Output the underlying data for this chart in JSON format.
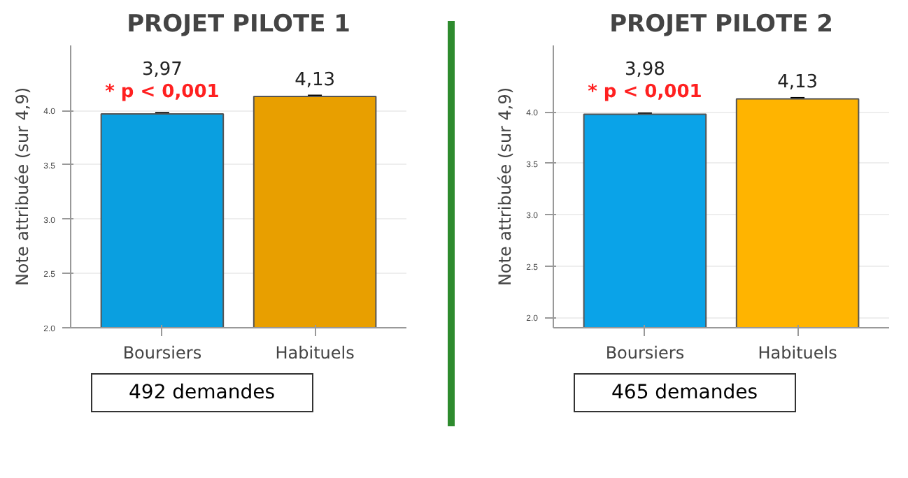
{
  "chart_data": [
    {
      "type": "bar",
      "title": "PROJET PILOTE 1",
      "ylabel": "Note attribuée (sur 4,9)",
      "categories": [
        "Boursiers",
        "Habituels"
      ],
      "values": [
        3.97,
        4.13
      ],
      "colors": [
        "#0a9fe0",
        "#e89f00"
      ],
      "value_labels": [
        "3,97",
        "4,13"
      ],
      "errors": [
        0.01,
        0.01
      ],
      "ylim": [
        2.0,
        4.6
      ],
      "yticks": [
        {
          "value": 2.0,
          "label": "2.0"
        },
        {
          "value": 2.5,
          "label": "2.5"
        },
        {
          "value": 3.0,
          "label": "3.0"
        },
        {
          "value": 3.5,
          "label": "3.5"
        },
        {
          "value": 4.0,
          "label": "4.0"
        }
      ],
      "grid": "y",
      "annotations": [
        "* p < 0,001",
        "492 demandes"
      ]
    },
    {
      "type": "bar",
      "title": "PROJET PILOTE 2",
      "ylabel": "Note attribuée (sur 4,9)",
      "categories": [
        "Boursiers",
        "Habituels"
      ],
      "values": [
        3.98,
        4.13
      ],
      "colors": [
        "#0aa3e8",
        "#ffb400"
      ],
      "value_labels": [
        "3,98",
        "4,13"
      ],
      "errors": [
        0.01,
        0.01
      ],
      "ylim": [
        1.9,
        4.65
      ],
      "yticks": [
        {
          "value": 2.0,
          "label": "2.0"
        },
        {
          "value": 2.5,
          "label": "2.5"
        },
        {
          "value": 3.0,
          "label": "3.0"
        },
        {
          "value": 3.5,
          "label": "3.5"
        },
        {
          "value": 4.0,
          "label": "4.0"
        }
      ],
      "grid": "y",
      "annotations": [
        "* p < 0,001",
        "465 demandes"
      ]
    }
  ]
}
